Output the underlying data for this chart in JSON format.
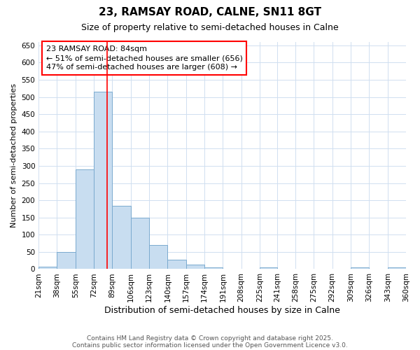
{
  "title1": "23, RAMSAY ROAD, CALNE, SN11 8GT",
  "title2": "Size of property relative to semi-detached houses in Calne",
  "xlabel": "Distribution of semi-detached houses by size in Calne",
  "ylabel": "Number of semi-detached properties",
  "bin_edges": [
    21,
    38,
    55,
    72,
    89,
    106,
    123,
    140,
    157,
    174,
    191,
    208,
    225,
    241,
    258,
    275,
    292,
    309,
    326,
    343,
    360
  ],
  "bar_heights": [
    7,
    50,
    290,
    515,
    183,
    150,
    70,
    28,
    14,
    5,
    0,
    0,
    5,
    0,
    0,
    0,
    0,
    5,
    0,
    5
  ],
  "bar_color": "#c8ddf0",
  "bar_edge_color": "#7aaacf",
  "red_line_x": 84,
  "ylim": [
    0,
    660
  ],
  "yticks": [
    0,
    50,
    100,
    150,
    200,
    250,
    300,
    350,
    400,
    450,
    500,
    550,
    600,
    650
  ],
  "annotation_box_text": "23 RAMSAY ROAD: 84sqm\n← 51% of semi-detached houses are smaller (656)\n47% of semi-detached houses are larger (608) →",
  "footnote1": "Contains HM Land Registry data © Crown copyright and database right 2025.",
  "footnote2": "Contains public sector information licensed under the Open Government Licence v3.0.",
  "grid_color": "#d0dff0",
  "background_color": "#ffffff",
  "title1_fontsize": 11,
  "title2_fontsize": 9,
  "xlabel_fontsize": 9,
  "ylabel_fontsize": 8,
  "tick_fontsize": 7.5,
  "footnote_fontsize": 6.5
}
